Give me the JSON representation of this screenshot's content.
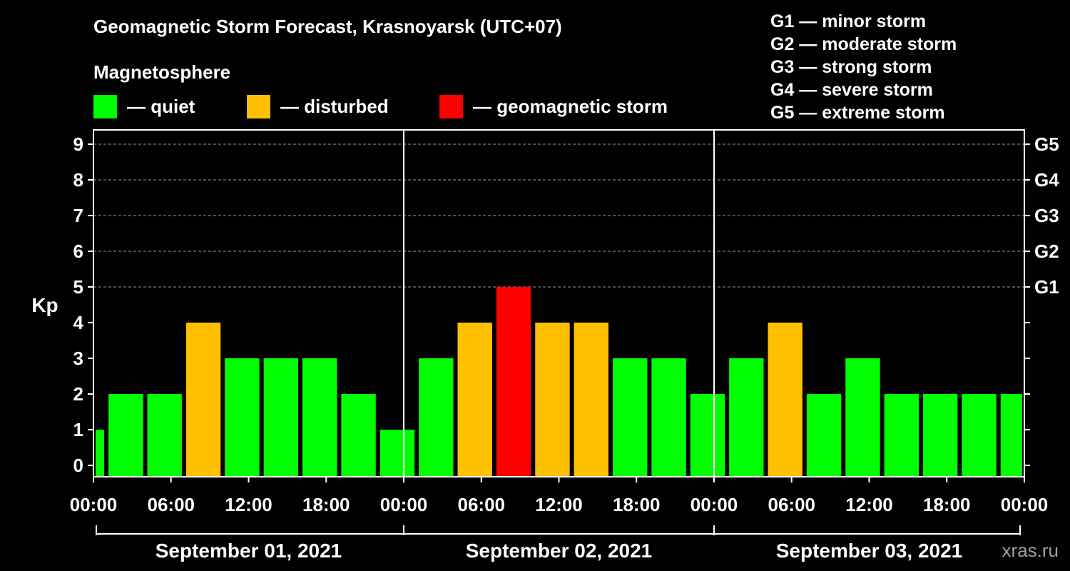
{
  "chart_data": {
    "type": "bar",
    "title": "Geomagnetic Storm Forecast, Krasnoyarsk (UTC+07)",
    "subtitle": "Magnetosphere",
    "ylabel": "Kp",
    "ylim": [
      0,
      9
    ],
    "y_ticks": [
      "0",
      "1",
      "2",
      "3",
      "4",
      "5",
      "6",
      "7",
      "8",
      "9"
    ],
    "right_ticks": [
      {
        "value": 5,
        "label": "G1"
      },
      {
        "value": 6,
        "label": "G2"
      },
      {
        "value": 7,
        "label": "G3"
      },
      {
        "value": 8,
        "label": "G4"
      },
      {
        "value": 9,
        "label": "G5"
      }
    ],
    "x_ticks": [
      "00:00",
      "06:00",
      "12:00",
      "18:00",
      "00:00",
      "06:00",
      "12:00",
      "18:00",
      "00:00",
      "06:00",
      "12:00",
      "18:00",
      "00:00"
    ],
    "days": [
      "September 01, 2021",
      "September 02, 2021",
      "September 03, 2021"
    ],
    "bar_hours_total": 72,
    "bars": [
      {
        "start": 0,
        "end": 1,
        "kp": 1,
        "level": "quiet"
      },
      {
        "start": 1,
        "end": 4,
        "kp": 2,
        "level": "quiet"
      },
      {
        "start": 4,
        "end": 7,
        "kp": 2,
        "level": "quiet"
      },
      {
        "start": 7,
        "end": 10,
        "kp": 4,
        "level": "disturbed"
      },
      {
        "start": 10,
        "end": 13,
        "kp": 3,
        "level": "quiet"
      },
      {
        "start": 13,
        "end": 16,
        "kp": 3,
        "level": "quiet"
      },
      {
        "start": 16,
        "end": 19,
        "kp": 3,
        "level": "quiet"
      },
      {
        "start": 19,
        "end": 22,
        "kp": 2,
        "level": "quiet"
      },
      {
        "start": 22,
        "end": 25,
        "kp": 1,
        "level": "quiet"
      },
      {
        "start": 25,
        "end": 28,
        "kp": 3,
        "level": "quiet"
      },
      {
        "start": 28,
        "end": 31,
        "kp": 4,
        "level": "disturbed"
      },
      {
        "start": 31,
        "end": 34,
        "kp": 5,
        "level": "storm"
      },
      {
        "start": 34,
        "end": 37,
        "kp": 4,
        "level": "disturbed"
      },
      {
        "start": 37,
        "end": 40,
        "kp": 4,
        "level": "disturbed"
      },
      {
        "start": 40,
        "end": 43,
        "kp": 3,
        "level": "quiet"
      },
      {
        "start": 43,
        "end": 46,
        "kp": 3,
        "level": "quiet"
      },
      {
        "start": 46,
        "end": 49,
        "kp": 2,
        "level": "quiet"
      },
      {
        "start": 49,
        "end": 52,
        "kp": 3,
        "level": "quiet"
      },
      {
        "start": 52,
        "end": 55,
        "kp": 4,
        "level": "disturbed"
      },
      {
        "start": 55,
        "end": 58,
        "kp": 2,
        "level": "quiet"
      },
      {
        "start": 58,
        "end": 61,
        "kp": 3,
        "level": "quiet"
      },
      {
        "start": 61,
        "end": 64,
        "kp": 2,
        "level": "quiet"
      },
      {
        "start": 64,
        "end": 67,
        "kp": 2,
        "level": "quiet"
      },
      {
        "start": 67,
        "end": 70,
        "kp": 2,
        "level": "quiet"
      },
      {
        "start": 70,
        "end": 72,
        "kp": 2,
        "level": "quiet"
      }
    ]
  },
  "legend": [
    {
      "key": "quiet",
      "label": "— quiet",
      "color": "#00ff00"
    },
    {
      "key": "disturbed",
      "label": "— disturbed",
      "color": "#ffc000"
    },
    {
      "key": "storm",
      "label": "— geomagnetic storm",
      "color": "#ff0000"
    }
  ],
  "g_scale": [
    "G1 — minor storm",
    "G2 — moderate storm",
    "G3 — strong storm",
    "G4 — severe storm",
    "G5 — extreme storm"
  ],
  "watermark": "xras.ru"
}
